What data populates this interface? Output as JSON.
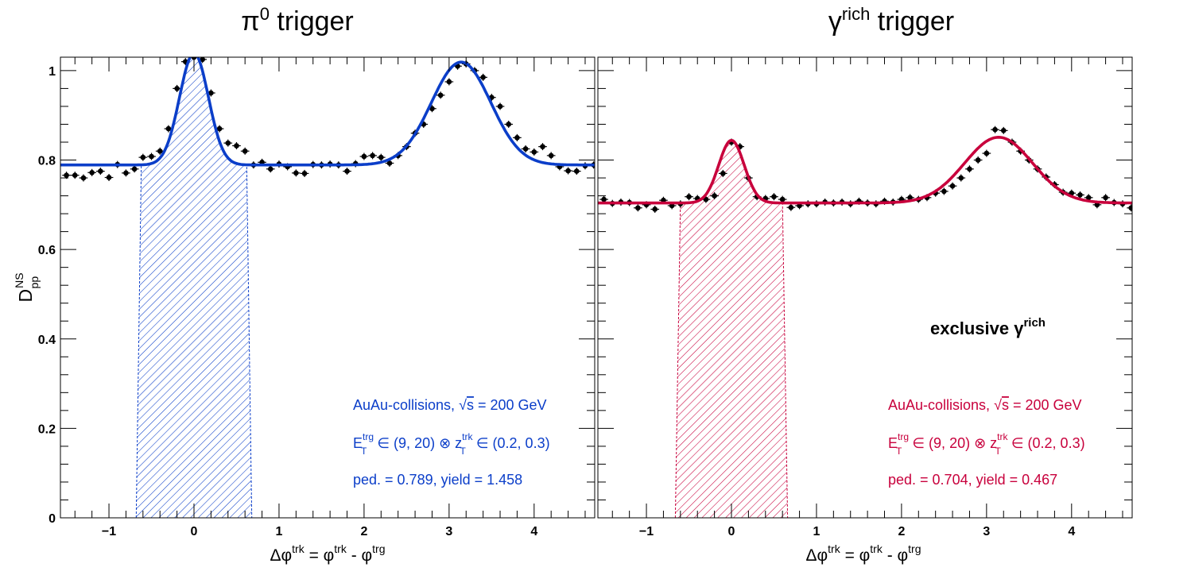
{
  "colors": {
    "left": "#0b3ec9",
    "right": "#c8003c",
    "points": "#000000"
  },
  "chart_data": [
    {
      "type": "scatter",
      "title": {
        "base": "π",
        "sup": "0",
        "rest": " trigger"
      },
      "ylabel": {
        "base": "D",
        "sup": "NS",
        "sub": "pp"
      },
      "xlabel": {
        "a": "Δφ",
        "a_sup": "trk",
        "b": " = φ",
        "b_sup": "trk",
        "c": " - φ",
        "c_sup": "trg"
      },
      "xlim": [
        -1.5708,
        4.7124
      ],
      "ylim": [
        0,
        1.03
      ],
      "x_ticks": [
        -1,
        0,
        1,
        2,
        3,
        4
      ],
      "x_tick_labels": [
        "−1",
        "0",
        "1",
        "2",
        "3",
        "4"
      ],
      "y_ticks": [
        0,
        0.2,
        0.4,
        0.6,
        0.8,
        1
      ],
      "y_tick_labels": [
        "0",
        "0.2",
        "0.4",
        "0.6",
        "0.8",
        "1"
      ],
      "series_points": {
        "x": [
          -1.5,
          -1.4,
          -1.3,
          -1.2,
          -1.1,
          -1.0,
          -0.9,
          -0.8,
          -0.7,
          -0.6,
          -0.5,
          -0.4,
          -0.3,
          -0.2,
          -0.1,
          0.0,
          0.1,
          0.2,
          0.3,
          0.4,
          0.5,
          0.6,
          0.7,
          0.8,
          0.9,
          1.0,
          1.1,
          1.2,
          1.3,
          1.4,
          1.5,
          1.6,
          1.7,
          1.8,
          1.9,
          2.0,
          2.1,
          2.2,
          2.3,
          2.4,
          2.5,
          2.6,
          2.7,
          2.8,
          2.9,
          3.0,
          3.1,
          3.2,
          3.3,
          3.4,
          3.5,
          3.6,
          3.7,
          3.8,
          3.9,
          4.0,
          4.1,
          4.2,
          4.3,
          4.4,
          4.5,
          4.6,
          4.7
        ],
        "y": [
          0.766,
          0.766,
          0.76,
          0.772,
          0.775,
          0.761,
          0.79,
          0.771,
          0.78,
          0.806,
          0.808,
          0.82,
          0.87,
          0.96,
          1.02,
          1.03,
          1.025,
          0.95,
          0.87,
          0.838,
          0.832,
          0.82,
          0.789,
          0.795,
          0.78,
          0.791,
          0.785,
          0.771,
          0.77,
          0.79,
          0.789,
          0.791,
          0.789,
          0.775,
          0.792,
          0.808,
          0.81,
          0.806,
          0.793,
          0.81,
          0.83,
          0.86,
          0.88,
          0.915,
          0.945,
          0.975,
          1.01,
          1.015,
          1.0,
          0.985,
          0.94,
          0.92,
          0.88,
          0.85,
          0.825,
          0.818,
          0.83,
          0.81,
          0.785,
          0.776,
          0.775,
          0.787,
          0.789
        ],
        "yerr": 0.008,
        "xerr": 0.05
      },
      "fit": {
        "pedestal": 0.789,
        "near_amplitude": 0.25,
        "near_sigma": 0.17,
        "away_amplitude": 0.23,
        "away_sigma": 0.35,
        "away_center": 3.1416
      },
      "shaded_region": {
        "x_at_pedestal": [
          -0.62,
          0.62
        ],
        "x_at_zero": [
          -0.68,
          0.68
        ]
      },
      "annotations": {
        "line1": {
          "text": "AuAu-collisions, ",
          "sqrt": "s",
          "rest": " = 200 GeV"
        },
        "line2": {
          "e": "E",
          "e_sub": "T",
          "e_sup": "trg",
          "mid": " ∈ (9, 20) ⊗ z",
          "z_sub": "T",
          "z_sup": "trk",
          "rest": " ∈ (0.2, 0.3)"
        },
        "line3": "ped. = 0.789, yield = 1.458"
      }
    },
    {
      "type": "scatter",
      "title": {
        "base": "γ",
        "sup": "rich",
        "rest": " trigger"
      },
      "xlabel": {
        "a": "Δφ",
        "a_sup": "trk",
        "b": " = φ",
        "b_sup": "trk",
        "c": " - φ",
        "c_sup": "trg"
      },
      "xlim": [
        -1.5708,
        4.7124
      ],
      "ylim": [
        0,
        1.03
      ],
      "x_ticks": [
        -1,
        0,
        1,
        2,
        3,
        4
      ],
      "x_tick_labels": [
        "−1",
        "0",
        "1",
        "2",
        "3",
        "4"
      ],
      "y_ticks": [
        0,
        0.2,
        0.4,
        0.6,
        0.8,
        1
      ],
      "series_points": {
        "x": [
          -1.5,
          -1.4,
          -1.3,
          -1.2,
          -1.1,
          -1.0,
          -0.9,
          -0.8,
          -0.7,
          -0.6,
          -0.5,
          -0.4,
          -0.3,
          -0.2,
          -0.1,
          0.0,
          0.1,
          0.2,
          0.3,
          0.4,
          0.5,
          0.6,
          0.7,
          0.8,
          0.9,
          1.0,
          1.1,
          1.2,
          1.3,
          1.4,
          1.5,
          1.6,
          1.7,
          1.8,
          1.9,
          2.0,
          2.1,
          2.2,
          2.3,
          2.4,
          2.5,
          2.6,
          2.7,
          2.8,
          2.9,
          3.0,
          3.1,
          3.2,
          3.3,
          3.4,
          3.5,
          3.6,
          3.7,
          3.8,
          3.9,
          4.0,
          4.1,
          4.2,
          4.3,
          4.4,
          4.5,
          4.6,
          4.7
        ],
        "y": [
          0.712,
          0.703,
          0.706,
          0.705,
          0.693,
          0.7,
          0.69,
          0.71,
          0.698,
          0.702,
          0.718,
          0.714,
          0.712,
          0.72,
          0.77,
          0.84,
          0.83,
          0.76,
          0.718,
          0.714,
          0.718,
          0.712,
          0.694,
          0.698,
          0.702,
          0.702,
          0.706,
          0.704,
          0.706,
          0.702,
          0.708,
          0.704,
          0.702,
          0.708,
          0.706,
          0.712,
          0.716,
          0.712,
          0.716,
          0.726,
          0.73,
          0.742,
          0.76,
          0.78,
          0.8,
          0.815,
          0.868,
          0.866,
          0.84,
          0.82,
          0.8,
          0.78,
          0.762,
          0.745,
          0.728,
          0.726,
          0.722,
          0.716,
          0.7,
          0.716,
          0.705,
          0.702,
          0.693
        ],
        "yerr": 0.008,
        "xerr": 0.05
      },
      "fit": {
        "pedestal": 0.704,
        "near_amplitude": 0.14,
        "near_sigma": 0.15,
        "away_amplitude": 0.147,
        "away_sigma": 0.4,
        "away_center": 3.1416
      },
      "shaded_region": {
        "x_at_pedestal": [
          -0.6,
          0.6
        ],
        "x_at_zero": [
          -0.66,
          0.66
        ]
      },
      "annotations": {
        "bold": {
          "text": "exclusive ",
          "g": "γ",
          "g_sup": "rich"
        },
        "line1": {
          "text": "AuAu-collisions, ",
          "sqrt": "s",
          "rest": " = 200 GeV"
        },
        "line2": {
          "e": "E",
          "e_sub": "T",
          "e_sup": "trg",
          "mid": " ∈ (9, 20) ⊗ z",
          "z_sub": "T",
          "z_sup": "trk",
          "rest": " ∈ (0.2, 0.3)"
        },
        "line3": "ped. = 0.704, yield = 0.467"
      }
    }
  ]
}
